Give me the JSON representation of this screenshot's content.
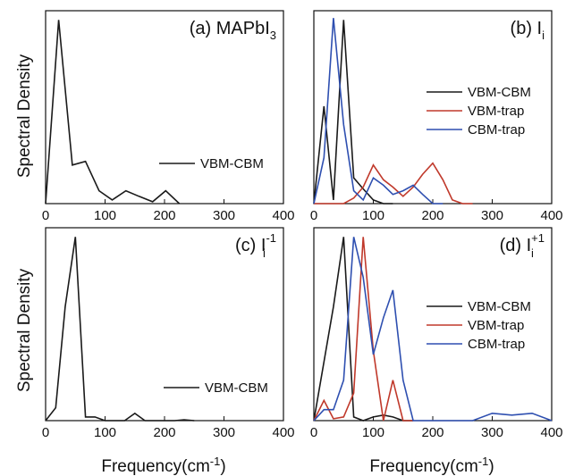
{
  "y_label": "Spectral Density",
  "x_label": "Frequency(cm",
  "x_label_sup": "-1",
  "x_label_close": ")",
  "chart_data": [
    {
      "type": "line",
      "panel": "a",
      "title_prefix": "(a) MAPbI",
      "title_sub": "3",
      "title_sup": "",
      "xlim": [
        0,
        400
      ],
      "xticks": [
        0,
        100,
        200,
        300,
        400
      ],
      "xtick_labels": [
        "0",
        "100",
        "200",
        "300",
        "400"
      ],
      "ylim": [
        0,
        1.05
      ],
      "legend_position": "center-right",
      "series": [
        {
          "name": "VBM-CBM",
          "color": "#1a1a1a",
          "x": [
            0,
            22,
            45,
            67,
            90,
            112,
            135,
            157,
            180,
            202,
            225
          ],
          "y": [
            0,
            1.0,
            0.21,
            0.23,
            0.07,
            0.02,
            0.07,
            0.04,
            0.01,
            0.07,
            0.0
          ]
        }
      ]
    },
    {
      "type": "line",
      "panel": "b",
      "title_prefix": "(b) I",
      "title_sub": "i",
      "title_sup": "",
      "xlim": [
        0,
        400
      ],
      "xticks": [
        0,
        100,
        200,
        300,
        400
      ],
      "xtick_labels": [
        "0",
        "100",
        "200",
        "300",
        "400"
      ],
      "ylim": [
        0,
        1.05
      ],
      "legend_position": "center-right",
      "series": [
        {
          "name": "VBM-CBM",
          "color": "#1a1a1a",
          "x": [
            0,
            17,
            33,
            50,
            67,
            83,
            100,
            117,
            133
          ],
          "y": [
            0,
            0.53,
            0.02,
            1.0,
            0.14,
            0.08,
            0.02,
            0.0,
            0.0
          ]
        },
        {
          "name": "VBM-trap",
          "color": "#c0392b",
          "x": [
            0,
            17,
            33,
            50,
            67,
            83,
            100,
            117,
            133,
            150,
            167,
            183,
            200,
            217,
            233,
            250,
            267
          ],
          "y": [
            0,
            0.0,
            0.0,
            0.0,
            0.03,
            0.09,
            0.21,
            0.13,
            0.09,
            0.04,
            0.09,
            0.16,
            0.22,
            0.13,
            0.02,
            0.0,
            0.0
          ]
        },
        {
          "name": "CBM-trap",
          "color": "#2e4fb0",
          "x": [
            0,
            17,
            33,
            50,
            67,
            83,
            100,
            117,
            133,
            150,
            167,
            183,
            200,
            217
          ],
          "y": [
            0,
            0.25,
            1.01,
            0.43,
            0.07,
            0.02,
            0.14,
            0.1,
            0.05,
            0.07,
            0.1,
            0.05,
            0.0,
            0.0
          ]
        }
      ]
    },
    {
      "type": "line",
      "panel": "c",
      "title_prefix": "(c) I",
      "title_sub": "i",
      "title_sup": "-1",
      "xlim": [
        0,
        400
      ],
      "xticks": [
        0,
        100,
        200,
        300,
        400
      ],
      "xtick_labels": [
        "0",
        "100",
        "200",
        "300",
        "400"
      ],
      "ylim": [
        0,
        1.05
      ],
      "legend_position": "center-right",
      "series": [
        {
          "name": "VBM-CBM",
          "color": "#1a1a1a",
          "x": [
            0,
            17,
            33,
            50,
            67,
            83,
            100,
            117,
            133,
            150,
            167,
            183,
            200,
            217,
            233,
            250
          ],
          "y": [
            0,
            0.07,
            0.62,
            1.0,
            0.02,
            0.02,
            0.0,
            0.0,
            0.0,
            0.04,
            0.0,
            0.0,
            0.0,
            0.0,
            0.005,
            0.0
          ]
        }
      ]
    },
    {
      "type": "line",
      "panel": "d",
      "title_prefix": "(d) I",
      "title_sub": "i",
      "title_sup": "+1",
      "xlim": [
        0,
        400
      ],
      "xticks": [
        0,
        100,
        200,
        300,
        400
      ],
      "xtick_labels": [
        "0",
        "100",
        "200",
        "300",
        "400"
      ],
      "ylim": [
        0,
        1.05
      ],
      "legend_position": "center-right",
      "series": [
        {
          "name": "VBM-CBM",
          "color": "#1a1a1a",
          "x": [
            0,
            17,
            33,
            50,
            67,
            83,
            100,
            117,
            133,
            150,
            167
          ],
          "y": [
            0,
            0.32,
            0.62,
            1.0,
            0.02,
            0.0,
            0.02,
            0.03,
            0.02,
            0.0,
            0.0
          ]
        },
        {
          "name": "VBM-trap",
          "color": "#c0392b",
          "x": [
            0,
            17,
            33,
            50,
            67,
            83,
            100,
            117,
            133,
            150,
            167
          ],
          "y": [
            0,
            0.11,
            0.01,
            0.02,
            0.15,
            1.0,
            0.38,
            0.0,
            0.22,
            0.0,
            0.0
          ]
        },
        {
          "name": "CBM-trap",
          "color": "#2e4fb0",
          "x": [
            0,
            17,
            33,
            50,
            67,
            83,
            100,
            117,
            133,
            150,
            167,
            183,
            200,
            267,
            300,
            333,
            367,
            400
          ],
          "y": [
            0,
            0.06,
            0.06,
            0.22,
            1.0,
            0.78,
            0.36,
            0.56,
            0.71,
            0.22,
            0.0,
            0.0,
            0.0,
            0.0,
            0.04,
            0.03,
            0.04,
            0.0
          ]
        }
      ]
    }
  ]
}
